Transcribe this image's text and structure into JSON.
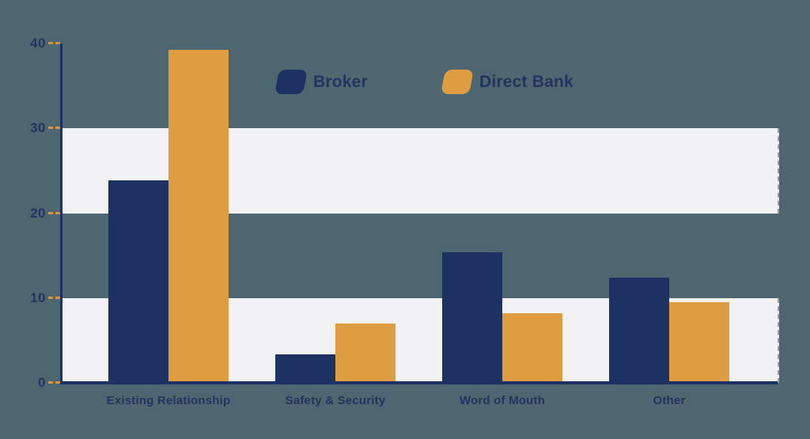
{
  "colors": {
    "background": "#4d6670",
    "navy": "#1e3163",
    "orange": "#df9d42",
    "band": "#f2f1f3",
    "text": "#26335f",
    "tick_dash": "#d9953e"
  },
  "legend": {
    "items": [
      {
        "label": "Broker",
        "swatch": "navy"
      },
      {
        "label": "Direct Bank",
        "swatch": "orange"
      }
    ]
  },
  "chart_data": {
    "type": "bar",
    "title": "",
    "xlabel": "",
    "ylabel": "",
    "categories": [
      "Existing Relationship",
      "Safety & Security",
      "Word of Mouth",
      "Other"
    ],
    "series": [
      {
        "name": "Broker",
        "color": "#1e3163",
        "values": [
          23.9,
          3.4,
          15.4,
          12.4
        ]
      },
      {
        "name": "Direct Bank",
        "color": "#df9d42",
        "values": [
          39.3,
          7.0,
          8.2,
          9.5
        ]
      }
    ],
    "ylim": [
      0,
      40
    ],
    "yticks": [
      0,
      10,
      20,
      30,
      40
    ],
    "striped_bands": [
      [
        0,
        10
      ],
      [
        20,
        30
      ]
    ],
    "grid": "striped-bands",
    "legend_position": "top-center"
  }
}
